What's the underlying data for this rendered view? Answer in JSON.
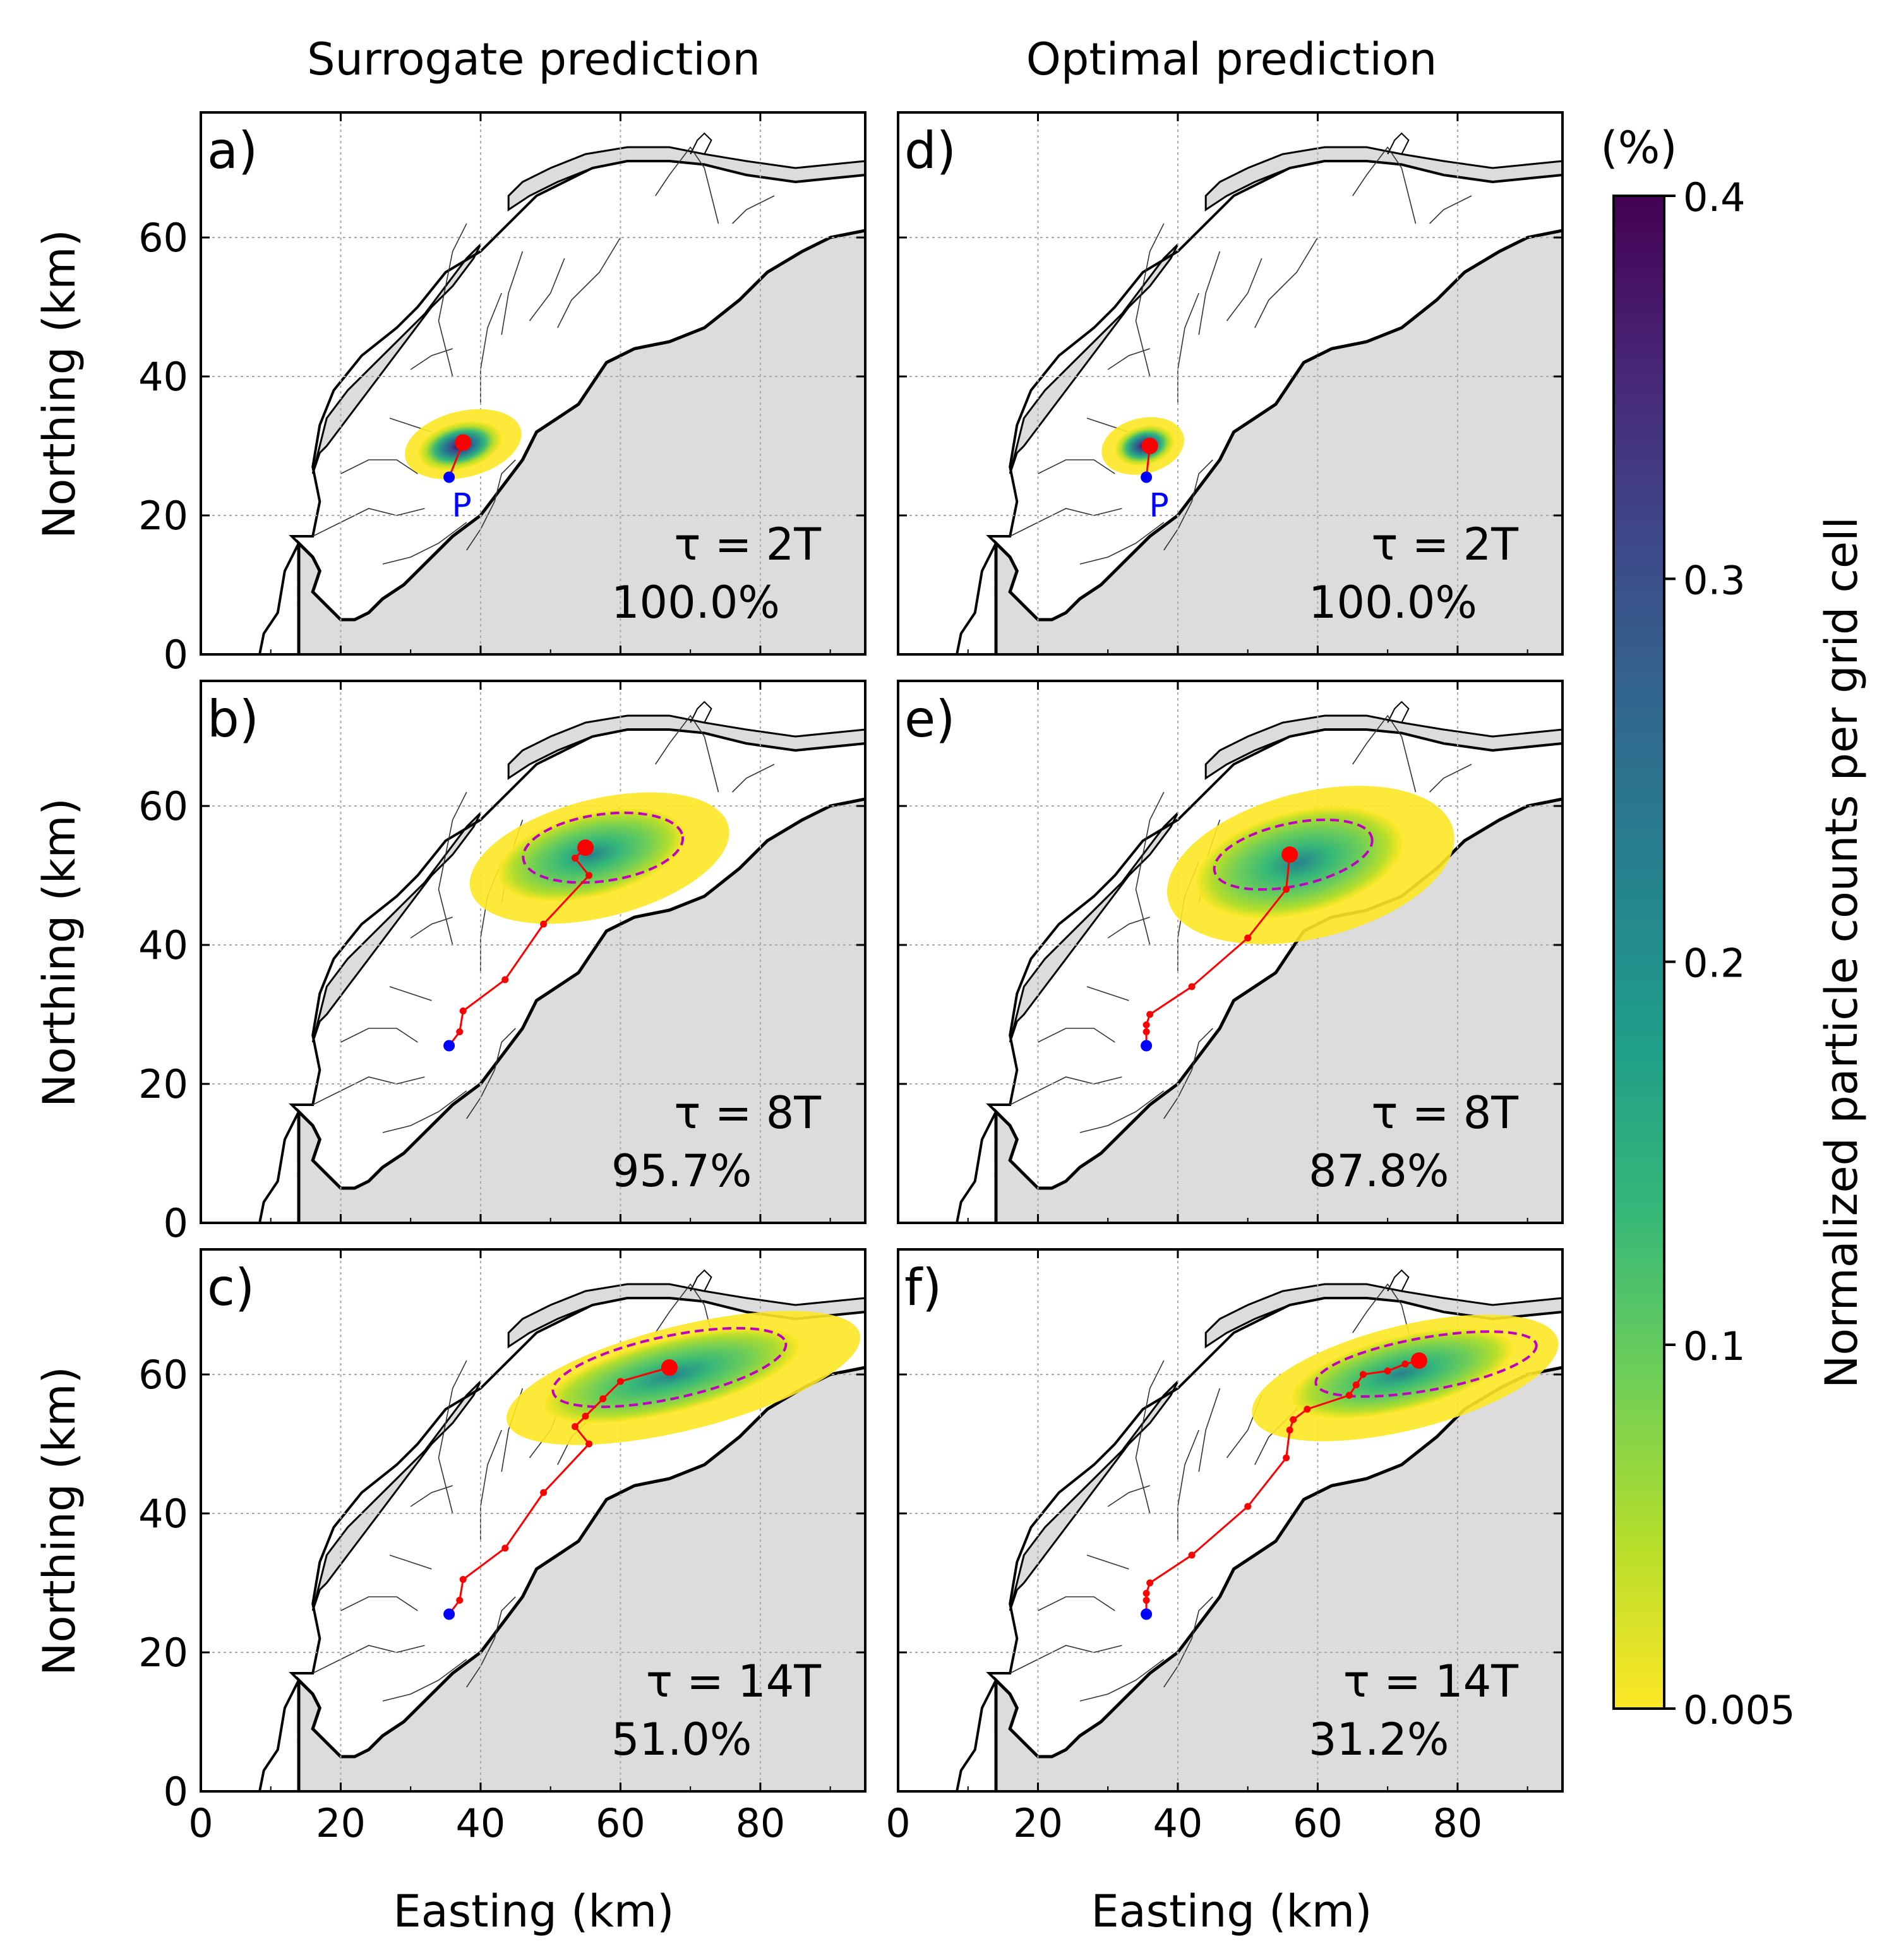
{
  "figure": {
    "column_titles": [
      "Surrogate prediction",
      "Optimal prediction"
    ],
    "xlabel": "Easting (km)",
    "ylabel": "Northing (km)",
    "point_label": "P",
    "colorbar": {
      "label": "Normalized particle counts per grid cell",
      "unit": "(%)",
      "ticks": [
        "0.4",
        "0.3",
        "0.2",
        "0.1",
        "0.005"
      ],
      "tick_values": [
        0.4,
        0.3,
        0.2,
        0.1,
        0.005
      ],
      "range": [
        0.005,
        0.4
      ],
      "colormap": "viridis (reversed)",
      "colors": [
        "#fde725",
        "#b5de2b",
        "#6ece58",
        "#35b779",
        "#1f9e89",
        "#26828e",
        "#31688e",
        "#3e4989",
        "#482878",
        "#440154"
      ]
    },
    "colors": {
      "land": "#dcdcdc",
      "coast": "#000000",
      "trajectory": "#ff0000",
      "ellipse": "#c000c0",
      "release_point": "#0000ff",
      "grid": "#aaaaaa"
    }
  },
  "chart_data": [
    {
      "type": "scatter",
      "panel": "a)",
      "column": "Surrogate prediction",
      "tau_label": "τ = 2T",
      "percent_label": "100.0%",
      "x_ticks": [
        "0",
        "20",
        "40",
        "60",
        "80"
      ],
      "y_ticks": [
        "0",
        "20",
        "40",
        "60"
      ],
      "xlim": [
        0,
        95
      ],
      "ylim": [
        0,
        78
      ],
      "grid": true,
      "release_point": [
        35.5,
        25.5
      ],
      "trajectory": [
        [
          35.5,
          25.5
        ],
        [
          37.5,
          30.5
        ]
      ],
      "centroid": [
        37.5,
        30.5
      ],
      "cloud": {
        "center": [
          36.5,
          30.0
        ],
        "extent_x": [
          29,
          46
        ],
        "extent_y": [
          25.5,
          35
        ]
      }
    },
    {
      "type": "scatter",
      "panel": "b)",
      "column": "Surrogate prediction",
      "tau_label": "τ = 8T",
      "percent_label": "95.7%",
      "x_ticks": [
        "0",
        "20",
        "40",
        "60",
        "80"
      ],
      "y_ticks": [
        "0",
        "20",
        "40",
        "60"
      ],
      "xlim": [
        0,
        95
      ],
      "ylim": [
        0,
        78
      ],
      "grid": true,
      "release_point": [
        35.5,
        25.5
      ],
      "trajectory": [
        [
          35.5,
          25.5
        ],
        [
          37.0,
          27.5
        ],
        [
          37.5,
          30.5
        ],
        [
          43.5,
          35.0
        ],
        [
          49.0,
          43.0
        ],
        [
          55.5,
          50.0
        ],
        [
          53.5,
          52.5
        ],
        [
          55.0,
          54.0
        ]
      ],
      "centroid": [
        55.0,
        54.0
      ],
      "ellipse": {
        "center": [
          57.5,
          54.0
        ],
        "semi_axis_x": 11.5,
        "semi_axis_y": 4.8,
        "angle_deg": 8
      },
      "cloud": {
        "center": [
          55.0,
          54.0
        ],
        "extent_x": [
          38,
          76
        ],
        "extent_y": [
          44,
          61
        ]
      }
    },
    {
      "type": "scatter",
      "panel": "c)",
      "column": "Surrogate prediction",
      "tau_label": "τ = 14T",
      "percent_label": "51.0%",
      "x_ticks": [
        "0",
        "20",
        "40",
        "60",
        "80"
      ],
      "y_ticks": [
        "0",
        "20",
        "40",
        "60"
      ],
      "xlim": [
        0,
        95
      ],
      "ylim": [
        0,
        78
      ],
      "grid": true,
      "release_point": [
        35.5,
        25.5
      ],
      "trajectory": [
        [
          35.5,
          25.5
        ],
        [
          37.0,
          27.5
        ],
        [
          37.5,
          30.5
        ],
        [
          43.5,
          35.0
        ],
        [
          49.0,
          43.0
        ],
        [
          55.5,
          50.0
        ],
        [
          53.5,
          52.5
        ],
        [
          55.0,
          54.0
        ],
        [
          57.5,
          56.5
        ],
        [
          60.0,
          59.0
        ],
        [
          67.0,
          61.0
        ]
      ],
      "centroid": [
        67.0,
        61.0
      ],
      "ellipse": {
        "center": [
          67.0,
          61.0
        ],
        "semi_axis_x": 17.0,
        "semi_axis_y": 4.5,
        "angle_deg": 12
      },
      "cloud": {
        "center": [
          66.0,
          61.0
        ],
        "extent_x": [
          43,
          95
        ],
        "extent_y": [
          52,
          67
        ]
      }
    },
    {
      "type": "scatter",
      "panel": "d)",
      "column": "Optimal prediction",
      "tau_label": "τ = 2T",
      "percent_label": "100.0%",
      "x_ticks": [
        "0",
        "20",
        "40",
        "60",
        "80"
      ],
      "y_ticks": [
        "0",
        "20",
        "40",
        "60"
      ],
      "xlim": [
        0,
        95
      ],
      "ylim": [
        0,
        78
      ],
      "grid": true,
      "release_point": [
        35.5,
        25.5
      ],
      "trajectory": [
        [
          35.5,
          25.5
        ],
        [
          36.0,
          30.0
        ]
      ],
      "centroid": [
        36.0,
        30.0
      ],
      "cloud": {
        "center": [
          35.5,
          30.0
        ],
        "extent_x": [
          29,
          41
        ],
        "extent_y": [
          26,
          34
        ]
      }
    },
    {
      "type": "scatter",
      "panel": "e)",
      "column": "Optimal prediction",
      "tau_label": "τ = 8T",
      "percent_label": "87.8%",
      "x_ticks": [
        "0",
        "20",
        "40",
        "60",
        "80"
      ],
      "y_ticks": [
        "0",
        "20",
        "40",
        "60"
      ],
      "xlim": [
        0,
        95
      ],
      "ylim": [
        0,
        78
      ],
      "grid": true,
      "release_point": [
        35.5,
        25.5
      ],
      "trajectory": [
        [
          35.5,
          25.5
        ],
        [
          35.5,
          27.5
        ],
        [
          35.5,
          28.5
        ],
        [
          36.0,
          30.0
        ],
        [
          42.0,
          34.0
        ],
        [
          50.0,
          41.0
        ],
        [
          55.5,
          48.0
        ],
        [
          56.0,
          53.0
        ]
      ],
      "centroid": [
        56.0,
        53.0
      ],
      "ellipse": {
        "center": [
          56.5,
          53.0
        ],
        "semi_axis_x": 11.5,
        "semi_axis_y": 4.5,
        "angle_deg": 12
      },
      "cloud": {
        "center": [
          56.0,
          53.0
        ],
        "extent_x": [
          38,
          80
        ],
        "extent_y": [
          41,
          62
        ]
      }
    },
    {
      "type": "scatter",
      "panel": "f)",
      "column": "Optimal prediction",
      "tau_label": "τ = 14T",
      "percent_label": "31.2%",
      "x_ticks": [
        "0",
        "20",
        "40",
        "60",
        "80"
      ],
      "y_ticks": [
        "0",
        "20",
        "40",
        "60"
      ],
      "xlim": [
        0,
        95
      ],
      "ylim": [
        0,
        78
      ],
      "grid": true,
      "release_point": [
        35.5,
        25.5
      ],
      "trajectory": [
        [
          35.5,
          25.5
        ],
        [
          35.5,
          27.5
        ],
        [
          35.5,
          28.5
        ],
        [
          36.0,
          30.0
        ],
        [
          42.0,
          34.0
        ],
        [
          50.0,
          41.0
        ],
        [
          55.5,
          48.0
        ],
        [
          56.0,
          52.0
        ],
        [
          56.5,
          53.5
        ],
        [
          58.5,
          55.0
        ],
        [
          64.5,
          57.0
        ],
        [
          65.5,
          58.5
        ],
        [
          66.5,
          60.0
        ],
        [
          70.0,
          60.5
        ],
        [
          72.5,
          61.5
        ],
        [
          74.5,
          62.0
        ]
      ],
      "centroid": [
        74.5,
        62.0
      ],
      "ellipse": {
        "center": [
          75.5,
          61.5
        ],
        "semi_axis_x": 16.0,
        "semi_axis_y": 3.8,
        "angle_deg": 10
      },
      "cloud": {
        "center": [
          72.0,
          61.0
        ],
        "extent_x": [
          50,
          95
        ],
        "extent_y": [
          52,
          67
        ]
      }
    }
  ]
}
